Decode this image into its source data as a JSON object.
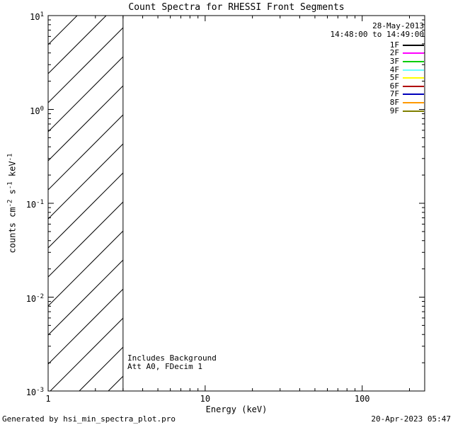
{
  "footer": {
    "left": "Generated by hsi_min_spectra_plot.pro",
    "right": "20-Apr-2023 05:47"
  },
  "chart_data": {
    "type": "line",
    "title": "Count Spectra for RHESSI Front Segments",
    "xlabel": "Energy (keV)",
    "ylabel": "counts cm^-2 s^-1 keV^-1",
    "xscale": "log",
    "yscale": "log",
    "xlim": [
      1,
      250
    ],
    "ylim": [
      0.001,
      10
    ],
    "grid": false,
    "frame_color": "#000000",
    "background": "#ffffff",
    "x_major_ticks": [
      1,
      10,
      100
    ],
    "x_tick_labels": [
      "1",
      "10",
      "100"
    ],
    "y_major_ticks": [
      0.001,
      0.01,
      0.1,
      1,
      10
    ],
    "y_tick_labels": [
      "10^-3",
      "10^-2",
      "10^-1",
      "10^0",
      "10^1"
    ],
    "annotations": [
      "Includes Background",
      "Att A0, FDecim 1"
    ],
    "hatched_region": {
      "x_start": 1,
      "x_end": 3,
      "style": "diagonal-lines",
      "color": "#000000"
    },
    "legend": {
      "position": "top-right",
      "date": "28-May-2013",
      "time_range": "14:48:00 to 14:49:00",
      "entries": [
        {
          "label": "1F",
          "color": "#000000"
        },
        {
          "label": "2F",
          "color": "#ff00ff"
        },
        {
          "label": "3F",
          "color": "#00cc00"
        },
        {
          "label": "4F",
          "color": "#66ffff"
        },
        {
          "label": "5F",
          "color": "#ffff00"
        },
        {
          "label": "6F",
          "color": "#b00000"
        },
        {
          "label": "7F",
          "color": "#0000bb"
        },
        {
          "label": "8F",
          "color": "#ff9900"
        },
        {
          "label": "9F",
          "color": "#7f7f00"
        }
      ]
    },
    "series": []
  }
}
